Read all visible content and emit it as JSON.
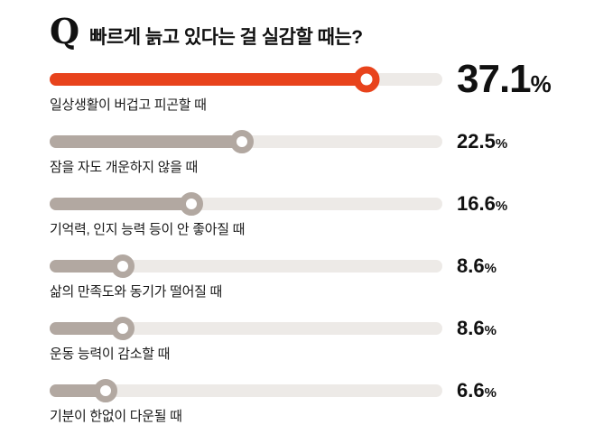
{
  "title": {
    "q": "Q",
    "text": "빠르게 늙고 있다는 걸 실감할 때는?"
  },
  "colors": {
    "accent": "#e8431c",
    "bar": "#b2a8a1",
    "track": "#edeae7"
  },
  "chart_data": {
    "type": "bar",
    "title": "빠르게 늙고 있다는 걸 실감할 때는?",
    "unit": "%",
    "orientation": "horizontal",
    "scale_max": 46,
    "items": [
      {
        "label": "일상생활이 버겁고 피곤할 때",
        "value": 37.1,
        "highlight": true
      },
      {
        "label": "잠을 자도 개운하지 않을 때",
        "value": 22.5,
        "highlight": false
      },
      {
        "label": "기억력, 인지 능력 등이 안 좋아질 때",
        "value": 16.6,
        "highlight": false
      },
      {
        "label": "삶의 만족도와 동기가 떨어질 때",
        "value": 8.6,
        "highlight": false
      },
      {
        "label": "운동 능력이 감소할 때",
        "value": 8.6,
        "highlight": false
      },
      {
        "label": "기분이 한없이 다운될 때",
        "value": 6.6,
        "highlight": false
      }
    ]
  }
}
